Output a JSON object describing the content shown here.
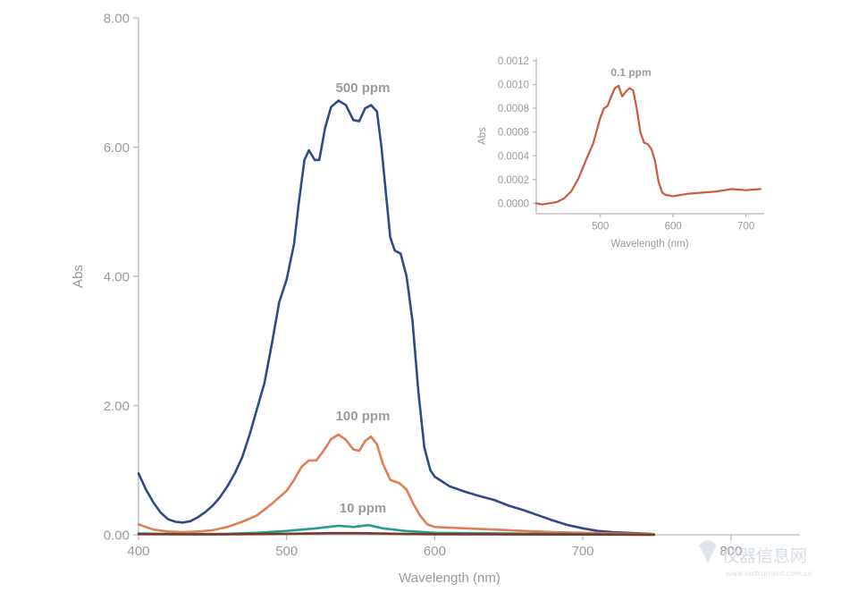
{
  "chart_data": [
    {
      "type": "line",
      "xlabel": "Wavelength (nm)",
      "ylabel": "Abs",
      "xlim": [
        400,
        820
      ],
      "ylim": [
        0,
        8
      ],
      "x_ticks": [
        "400",
        "500",
        "600",
        "700",
        "800"
      ],
      "y_ticks": [
        "0.00",
        "2.00",
        "4.00",
        "6.00",
        "8.00"
      ],
      "grid": false,
      "series": [
        {
          "name": "500 ppm",
          "color": "#2f4a86",
          "points": [
            [
              400,
              0.95
            ],
            [
              405,
              0.7
            ],
            [
              410,
              0.5
            ],
            [
              415,
              0.34
            ],
            [
              420,
              0.24
            ],
            [
              425,
              0.2
            ],
            [
              430,
              0.19
            ],
            [
              435,
              0.21
            ],
            [
              440,
              0.27
            ],
            [
              445,
              0.35
            ],
            [
              450,
              0.45
            ],
            [
              455,
              0.58
            ],
            [
              460,
              0.75
            ],
            [
              465,
              0.95
            ],
            [
              470,
              1.2
            ],
            [
              475,
              1.55
            ],
            [
              480,
              1.95
            ],
            [
              485,
              2.35
            ],
            [
              490,
              2.95
            ],
            [
              495,
              3.6
            ],
            [
              500,
              3.95
            ],
            [
              505,
              4.5
            ],
            [
              508,
              5.1
            ],
            [
              512,
              5.8
            ],
            [
              515,
              5.95
            ],
            [
              519,
              5.8
            ],
            [
              522,
              5.8
            ],
            [
              526,
              6.3
            ],
            [
              530,
              6.62
            ],
            [
              535,
              6.72
            ],
            [
              540,
              6.65
            ],
            [
              545,
              6.42
            ],
            [
              549,
              6.4
            ],
            [
              553,
              6.6
            ],
            [
              557,
              6.65
            ],
            [
              561,
              6.55
            ],
            [
              564,
              6.0
            ],
            [
              567,
              5.3
            ],
            [
              570,
              4.6
            ],
            [
              573,
              4.4
            ],
            [
              577,
              4.35
            ],
            [
              581,
              4.0
            ],
            [
              585,
              3.3
            ],
            [
              589,
              2.2
            ],
            [
              593,
              1.35
            ],
            [
              597,
              1.0
            ],
            [
              600,
              0.9
            ],
            [
              610,
              0.75
            ],
            [
              620,
              0.67
            ],
            [
              630,
              0.6
            ],
            [
              640,
              0.54
            ],
            [
              650,
              0.45
            ],
            [
              660,
              0.38
            ],
            [
              670,
              0.3
            ],
            [
              680,
              0.22
            ],
            [
              690,
              0.15
            ],
            [
              700,
              0.1
            ],
            [
              710,
              0.06
            ],
            [
              720,
              0.04
            ],
            [
              730,
              0.03
            ],
            [
              740,
              0.02
            ],
            [
              748,
              0.01
            ]
          ]
        },
        {
          "name": "100 ppm",
          "color": "#e07e55",
          "points": [
            [
              400,
              0.16
            ],
            [
              405,
              0.12
            ],
            [
              410,
              0.08
            ],
            [
              420,
              0.05
            ],
            [
              430,
              0.04
            ],
            [
              440,
              0.05
            ],
            [
              450,
              0.07
            ],
            [
              460,
              0.12
            ],
            [
              470,
              0.2
            ],
            [
              480,
              0.3
            ],
            [
              490,
              0.48
            ],
            [
              500,
              0.68
            ],
            [
              505,
              0.85
            ],
            [
              510,
              1.05
            ],
            [
              515,
              1.15
            ],
            [
              520,
              1.15
            ],
            [
              525,
              1.3
            ],
            [
              530,
              1.48
            ],
            [
              535,
              1.55
            ],
            [
              540,
              1.47
            ],
            [
              545,
              1.32
            ],
            [
              549,
              1.3
            ],
            [
              553,
              1.45
            ],
            [
              557,
              1.52
            ],
            [
              561,
              1.4
            ],
            [
              565,
              1.1
            ],
            [
              570,
              0.85
            ],
            [
              576,
              0.8
            ],
            [
              581,
              0.7
            ],
            [
              585,
              0.5
            ],
            [
              590,
              0.3
            ],
            [
              595,
              0.16
            ],
            [
              600,
              0.12
            ],
            [
              620,
              0.1
            ],
            [
              640,
              0.08
            ],
            [
              660,
              0.06
            ],
            [
              680,
              0.04
            ],
            [
              700,
              0.03
            ],
            [
              720,
              0.02
            ],
            [
              748,
              0.01
            ]
          ]
        },
        {
          "name": "10 ppm",
          "color": "#2a9a95",
          "points": [
            [
              400,
              0.02
            ],
            [
              430,
              0.01
            ],
            [
              460,
              0.015
            ],
            [
              480,
              0.03
            ],
            [
              500,
              0.06
            ],
            [
              520,
              0.1
            ],
            [
              535,
              0.14
            ],
            [
              545,
              0.12
            ],
            [
              555,
              0.15
            ],
            [
              565,
              0.1
            ],
            [
              580,
              0.06
            ],
            [
              600,
              0.03
            ],
            [
              650,
              0.02
            ],
            [
              700,
              0.01
            ],
            [
              748,
              0.0
            ]
          ]
        },
        {
          "name": "",
          "color": "#7a3a2a",
          "points": [
            [
              400,
              0.01
            ],
            [
              450,
              0.005
            ],
            [
              500,
              0.015
            ],
            [
              530,
              0.025
            ],
            [
              550,
              0.025
            ],
            [
              575,
              0.015
            ],
            [
              600,
              0.008
            ],
            [
              700,
              0.004
            ],
            [
              748,
              0.0
            ]
          ]
        }
      ],
      "annotations": [
        "500 ppm",
        "100 ppm",
        "10 ppm"
      ]
    },
    {
      "type": "line",
      "xlabel": "Wavelength (nm)",
      "ylabel": "Abs",
      "xlim": [
        412,
        725
      ],
      "ylim": [
        -2e-05,
        0.0012
      ],
      "x_ticks": [
        "500",
        "600",
        "700"
      ],
      "y_ticks": [
        "0.0000",
        "0.0002",
        "0.0004",
        "0.0006",
        "0.0008",
        "0.0010",
        "0.0012"
      ],
      "grid": false,
      "series": [
        {
          "name": "0.1 ppm",
          "color": "#cc5a3d",
          "points": [
            [
              412,
              0.0
            ],
            [
              420,
              -1e-05
            ],
            [
              430,
              0.0
            ],
            [
              440,
              1e-05
            ],
            [
              450,
              4e-05
            ],
            [
              460,
              0.0001
            ],
            [
              470,
              0.00021
            ],
            [
              480,
              0.00036
            ],
            [
              490,
              0.0005
            ],
            [
              500,
              0.00072
            ],
            [
              505,
              0.0008
            ],
            [
              510,
              0.00082
            ],
            [
              515,
              0.0009
            ],
            [
              520,
              0.00097
            ],
            [
              525,
              0.00099
            ],
            [
              530,
              0.0009
            ],
            [
              535,
              0.00094
            ],
            [
              540,
              0.00097
            ],
            [
              545,
              0.00095
            ],
            [
              550,
              0.0008
            ],
            [
              555,
              0.0006
            ],
            [
              560,
              0.00051
            ],
            [
              565,
              0.0005
            ],
            [
              570,
              0.00046
            ],
            [
              575,
              0.00036
            ],
            [
              580,
              0.00018
            ],
            [
              585,
              9e-05
            ],
            [
              590,
              7e-05
            ],
            [
              600,
              6e-05
            ],
            [
              620,
              8e-05
            ],
            [
              640,
              9e-05
            ],
            [
              660,
              0.0001
            ],
            [
              680,
              0.00012
            ],
            [
              700,
              0.00011
            ],
            [
              720,
              0.00012
            ]
          ]
        }
      ],
      "annotations": [
        "0.1 ppm"
      ]
    }
  ],
  "watermark": {
    "text": "仪器信息网",
    "sub": "www.instrument.com.cn"
  }
}
